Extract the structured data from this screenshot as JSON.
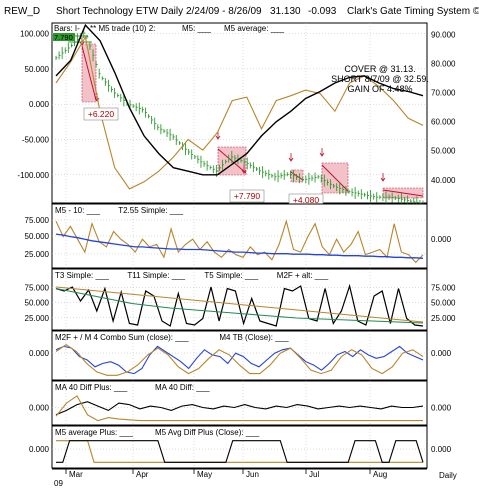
{
  "header": {
    "symbol": "REW_D",
    "title": "Short Technology ETW Daily",
    "date_range": "2/24/09 - 8/26/09",
    "price": "31.130",
    "change": "-0.093",
    "system": "Clark's Gate Timing System ©"
  },
  "colors": {
    "grid": "#bbbbbb",
    "black_series": "#000000",
    "orange_series": "#b8862b",
    "blue_series": "#2244dd",
    "green_series": "#228855",
    "candle_green": "#2e9a2e",
    "trade_box": "#f2b8c0",
    "trade_line": "#c01030"
  },
  "x_axis": {
    "months": [
      "Mar",
      "Apr",
      "May",
      "Jun",
      "Jul",
      "Aug"
    ],
    "year_label": "09",
    "period_label": "Daily"
  },
  "chart_data": [
    {
      "type": "line",
      "panel": "price",
      "legend": {
        "bars": "Bars: I-",
        "m5_trade": "** M5 trade (10) 2:",
        "m5": "M5: ___",
        "m5_average": "M5 average: ___"
      },
      "top_value": "7.790",
      "left_ticks": [
        "100.000",
        "50.000",
        "0.000",
        "-50.000",
        "-100.000"
      ],
      "right_ticks": [
        "90.000",
        "80.000",
        "70.000",
        "60.000",
        "50.000",
        "40.000"
      ],
      "left_ylim": [
        -140,
        115
      ],
      "right_ylim": [
        32,
        94
      ],
      "price_x": [
        0,
        5,
        10,
        15,
        20,
        25,
        30,
        35,
        40,
        45,
        50,
        55,
        60,
        65,
        70,
        75,
        80,
        85,
        90,
        95,
        100,
        105,
        110,
        115,
        120,
        125,
        126
      ],
      "price_values": [
        82,
        86,
        91,
        76,
        70,
        66,
        64,
        58,
        55,
        50,
        46,
        43,
        48,
        46,
        43,
        41,
        42,
        40,
        41,
        38,
        36,
        35,
        34,
        34,
        33,
        32,
        31.13
      ],
      "series": [
        {
          "name": "M5",
          "x": [
            0,
            5,
            10,
            15,
            20,
            25,
            30,
            35,
            40,
            45,
            50,
            55,
            60,
            65,
            70,
            75,
            80,
            85,
            90,
            95,
            100,
            105,
            110,
            115,
            120,
            125
          ],
          "values": [
            30,
            60,
            95,
            -10,
            -90,
            -120,
            -110,
            -95,
            -75,
            -50,
            -65,
            -40,
            5,
            10,
            -35,
            5,
            12,
            20,
            15,
            -10,
            30,
            40,
            25,
            5,
            -20,
            -30
          ]
        },
        {
          "name": "M5 average",
          "x": [
            0,
            5,
            10,
            15,
            20,
            25,
            30,
            35,
            40,
            45,
            50,
            55,
            60,
            65,
            70,
            75,
            80,
            85,
            90,
            95,
            100,
            105,
            110,
            115,
            120,
            125
          ],
          "values": [
            40,
            62,
            112,
            90,
            45,
            -5,
            -45,
            -70,
            -90,
            -95,
            -100,
            -100,
            -85,
            -70,
            -45,
            -25,
            -10,
            8,
            18,
            30,
            38,
            40,
            30,
            22,
            18,
            12
          ]
        }
      ],
      "annotations": [
        {
          "text": "+6.220"
        },
        {
          "text": "+7.790"
        },
        {
          "text": "+4.080"
        }
      ],
      "result_text": [
        "COVER @ 31.13.",
        "SHORT 8/7/09 @ 32.59.",
        "GAIN OF 4.48%"
      ]
    },
    {
      "type": "line",
      "panel": "m5_10",
      "legend": [
        "M5 - 10: ___",
        "T2.55 Simple: ___"
      ],
      "left_ticks": [
        "75.000",
        "50.000",
        "25.000"
      ],
      "right_ticks": [
        "0.000"
      ],
      "ylim": [
        5,
        100
      ],
      "series": [
        {
          "name": "M5 - 10",
          "values": [
            90,
            60,
            80,
            55,
            30,
            85,
            50,
            40,
            70,
            55,
            45,
            30,
            55,
            40,
            45,
            20,
            75,
            30,
            45,
            55,
            35,
            50,
            30,
            20,
            35,
            25,
            20,
            40,
            25,
            30,
            15,
            45,
            90,
            35,
            30,
            60,
            85,
            40,
            25,
            55,
            30,
            45,
            70,
            25,
            30,
            35,
            20,
            85,
            30,
            25,
            10,
            25
          ]
        },
        {
          "name": "T2.55 Simple",
          "values": [
            65,
            63,
            60,
            58,
            55,
            52,
            50,
            48,
            46,
            44,
            42,
            40,
            40,
            39,
            38,
            37,
            36,
            36,
            35,
            35,
            35,
            34,
            33,
            32,
            31,
            30,
            30,
            29,
            28,
            28,
            27,
            27,
            27,
            26,
            26,
            26,
            25,
            25,
            24,
            24,
            23,
            23,
            23,
            22,
            22,
            21,
            21,
            20,
            20,
            19,
            19,
            18
          ]
        }
      ]
    },
    {
      "type": "line",
      "panel": "t3",
      "legend": [
        "T3 Simple: ___",
        "T11 Simple: ___",
        "T5 Simple: ___",
        "M2F + alt: ___"
      ],
      "left_ticks": [
        "75.000",
        "50.000",
        "25.000"
      ],
      "right_ticks": [
        "75.000",
        "50.000",
        "25.000"
      ],
      "ylim": [
        8,
        100
      ],
      "series": [
        {
          "name": "T3 Simple",
          "values": [
            85,
            80,
            88,
            60,
            82,
            40,
            85,
            20,
            78,
            15,
            12,
            80,
            70,
            20,
            10,
            75,
            15,
            12,
            25,
            88,
            20,
            85,
            80,
            15,
            65,
            20,
            15,
            10,
            85,
            80,
            90,
            25,
            20,
            85,
            15,
            40,
            90,
            20,
            12,
            70,
            80,
            15,
            85,
            25,
            12,
            10
          ]
        },
        {
          "name": "T11 Simple",
          "values": [
            88,
            86,
            84,
            82,
            80,
            78,
            76,
            74,
            72,
            70,
            68,
            66,
            64,
            62,
            60,
            58,
            56,
            54,
            52,
            50,
            48,
            46,
            44,
            42,
            40,
            38,
            36,
            34,
            32,
            30,
            28,
            26,
            24,
            22,
            20,
            18
          ]
        },
        {
          "name": "T5 Simple",
          "values": [
            85,
            80,
            75,
            70,
            65,
            60,
            55,
            52,
            49,
            46,
            44,
            42,
            40,
            38,
            36,
            34,
            32,
            30,
            28,
            26,
            25,
            24,
            23,
            22,
            21,
            20,
            19,
            18,
            17,
            16
          ]
        }
      ]
    },
    {
      "type": "line",
      "panel": "m2f",
      "legend": [
        "M2F + / M 4 Combo Sum (close): ___",
        "M4 TB (Close): ___"
      ],
      "left_ticks": [
        "0.000"
      ],
      "right_ticks": [
        "0.000"
      ],
      "ylim": [
        -1,
        1
      ],
      "series": [
        {
          "name": "M2F + / M 4 Combo Sum (close)",
          "values": [
            0.6,
            0.8,
            0.7,
            0.2,
            0.0,
            -0.4,
            -0.2,
            -0.1,
            -0.3,
            -0.7,
            -0.8,
            -0.5,
            0.3,
            0.8,
            0.5,
            0.2,
            -0.1,
            -0.5,
            0.1,
            0.6,
            0.3,
            0.2,
            -0.2,
            0.4,
            0.2,
            -0.2,
            -0.4,
            0.0,
            0.4,
            0.6,
            0.7,
            0.3,
            -0.1,
            -0.3,
            -0.6,
            -0.2,
            0.3,
            0.5,
            0.2,
            0.6,
            0.3,
            0.1,
            0.2,
            0.5,
            0.8,
            0.4,
            0.2,
            0.0
          ]
        },
        {
          "name": "M4 TB (Close)",
          "values": [
            0.5,
            0.9,
            0.5,
            -0.2,
            -0.7,
            -0.9,
            -0.9,
            -0.7,
            -0.3,
            0.3,
            0.7,
            0.3,
            -0.4,
            -0.8,
            -0.5,
            0.1,
            0.6,
            0.3,
            -0.3,
            -0.8,
            -0.8,
            -0.3,
            0.4,
            0.7,
            0.1,
            -0.6,
            -0.8,
            -0.6,
            0.2,
            0.6,
            0.3,
            -0.5,
            -0.8,
            -0.4,
            0.4,
            0.6,
            0.2
          ]
        }
      ]
    },
    {
      "type": "line",
      "panel": "ma40",
      "legend": [
        "MA 40 Diff Plus: ___",
        "MA 40 Diff: ___"
      ],
      "left_ticks": [
        "0.000"
      ],
      "right_ticks": [
        "0.000"
      ],
      "ylim": [
        -1,
        1
      ],
      "series": [
        {
          "name": "MA 40 Diff Plus",
          "values": [
            -0.5,
            -0.2,
            0.2,
            0.4,
            0.1,
            -0.2,
            0.3,
            0.2,
            -0.1,
            0.1,
            0.0,
            -0.2,
            0.1,
            0.2,
            0.0,
            -0.1,
            0.1,
            0.0,
            0.2,
            0.0,
            -0.1,
            0.1,
            0.0,
            0.2,
            0.1,
            -0.1,
            0.0,
            0.1,
            0.0,
            0.1,
            0.0,
            -0.1,
            0.1,
            0.0,
            0.0,
            0.1
          ]
        },
        {
          "name": "MA 40 Diff",
          "values": [
            -0.6,
            0.3,
            0.8,
            -0.5,
            -0.9,
            -0.7,
            -0.8,
            -0.85,
            -0.9,
            -0.9,
            -0.9,
            -0.9,
            -0.9,
            -0.9,
            -0.9,
            -0.9,
            -0.9,
            -0.9,
            -0.9,
            -0.9,
            -0.9,
            -0.9,
            -0.9,
            -0.9,
            -0.9,
            -0.9,
            -0.9,
            -0.9,
            -0.9,
            -0.9,
            -0.9,
            -0.9,
            -0.9,
            -0.9,
            -0.9,
            -0.9
          ]
        }
      ]
    },
    {
      "type": "line",
      "panel": "m5_avg",
      "legend": [
        "M5 average Plus: ___",
        "M5 Avg Diff Plus (Close): ___"
      ],
      "left_ticks": [
        "0.000"
      ],
      "right_ticks": [
        "0.000"
      ],
      "ylim": [
        -1,
        1
      ],
      "series": [
        {
          "name": "M5 average Plus",
          "values": [
            0.8,
            0.8,
            0.8,
            -0.8,
            -0.8,
            -0.8,
            -0.8,
            -0.8,
            -0.8,
            -0.8,
            -0.8,
            -0.8,
            -0.8,
            -0.8,
            -0.8,
            -0.8,
            -0.8,
            -0.8,
            -0.8,
            -0.8,
            -0.8,
            -0.8,
            -0.8,
            -0.8,
            -0.8,
            -0.8,
            -0.8,
            -0.8,
            -0.8,
            -0.8
          ]
        },
        {
          "name": "M5 Avg Diff Plus (Close)",
          "values": [
            -0.8,
            0.8,
            0.8,
            0.8,
            0.8,
            0.8,
            0.8,
            0.8,
            -0.8,
            -0.8,
            -0.8,
            -0.8,
            -0.8,
            0.8,
            0.8,
            0.8,
            0.8,
            -0.8,
            -0.8,
            -0.8,
            -0.8,
            -0.8,
            0.8,
            0.8,
            -0.8,
            0.8,
            0.8,
            -0.8
          ]
        }
      ]
    }
  ]
}
